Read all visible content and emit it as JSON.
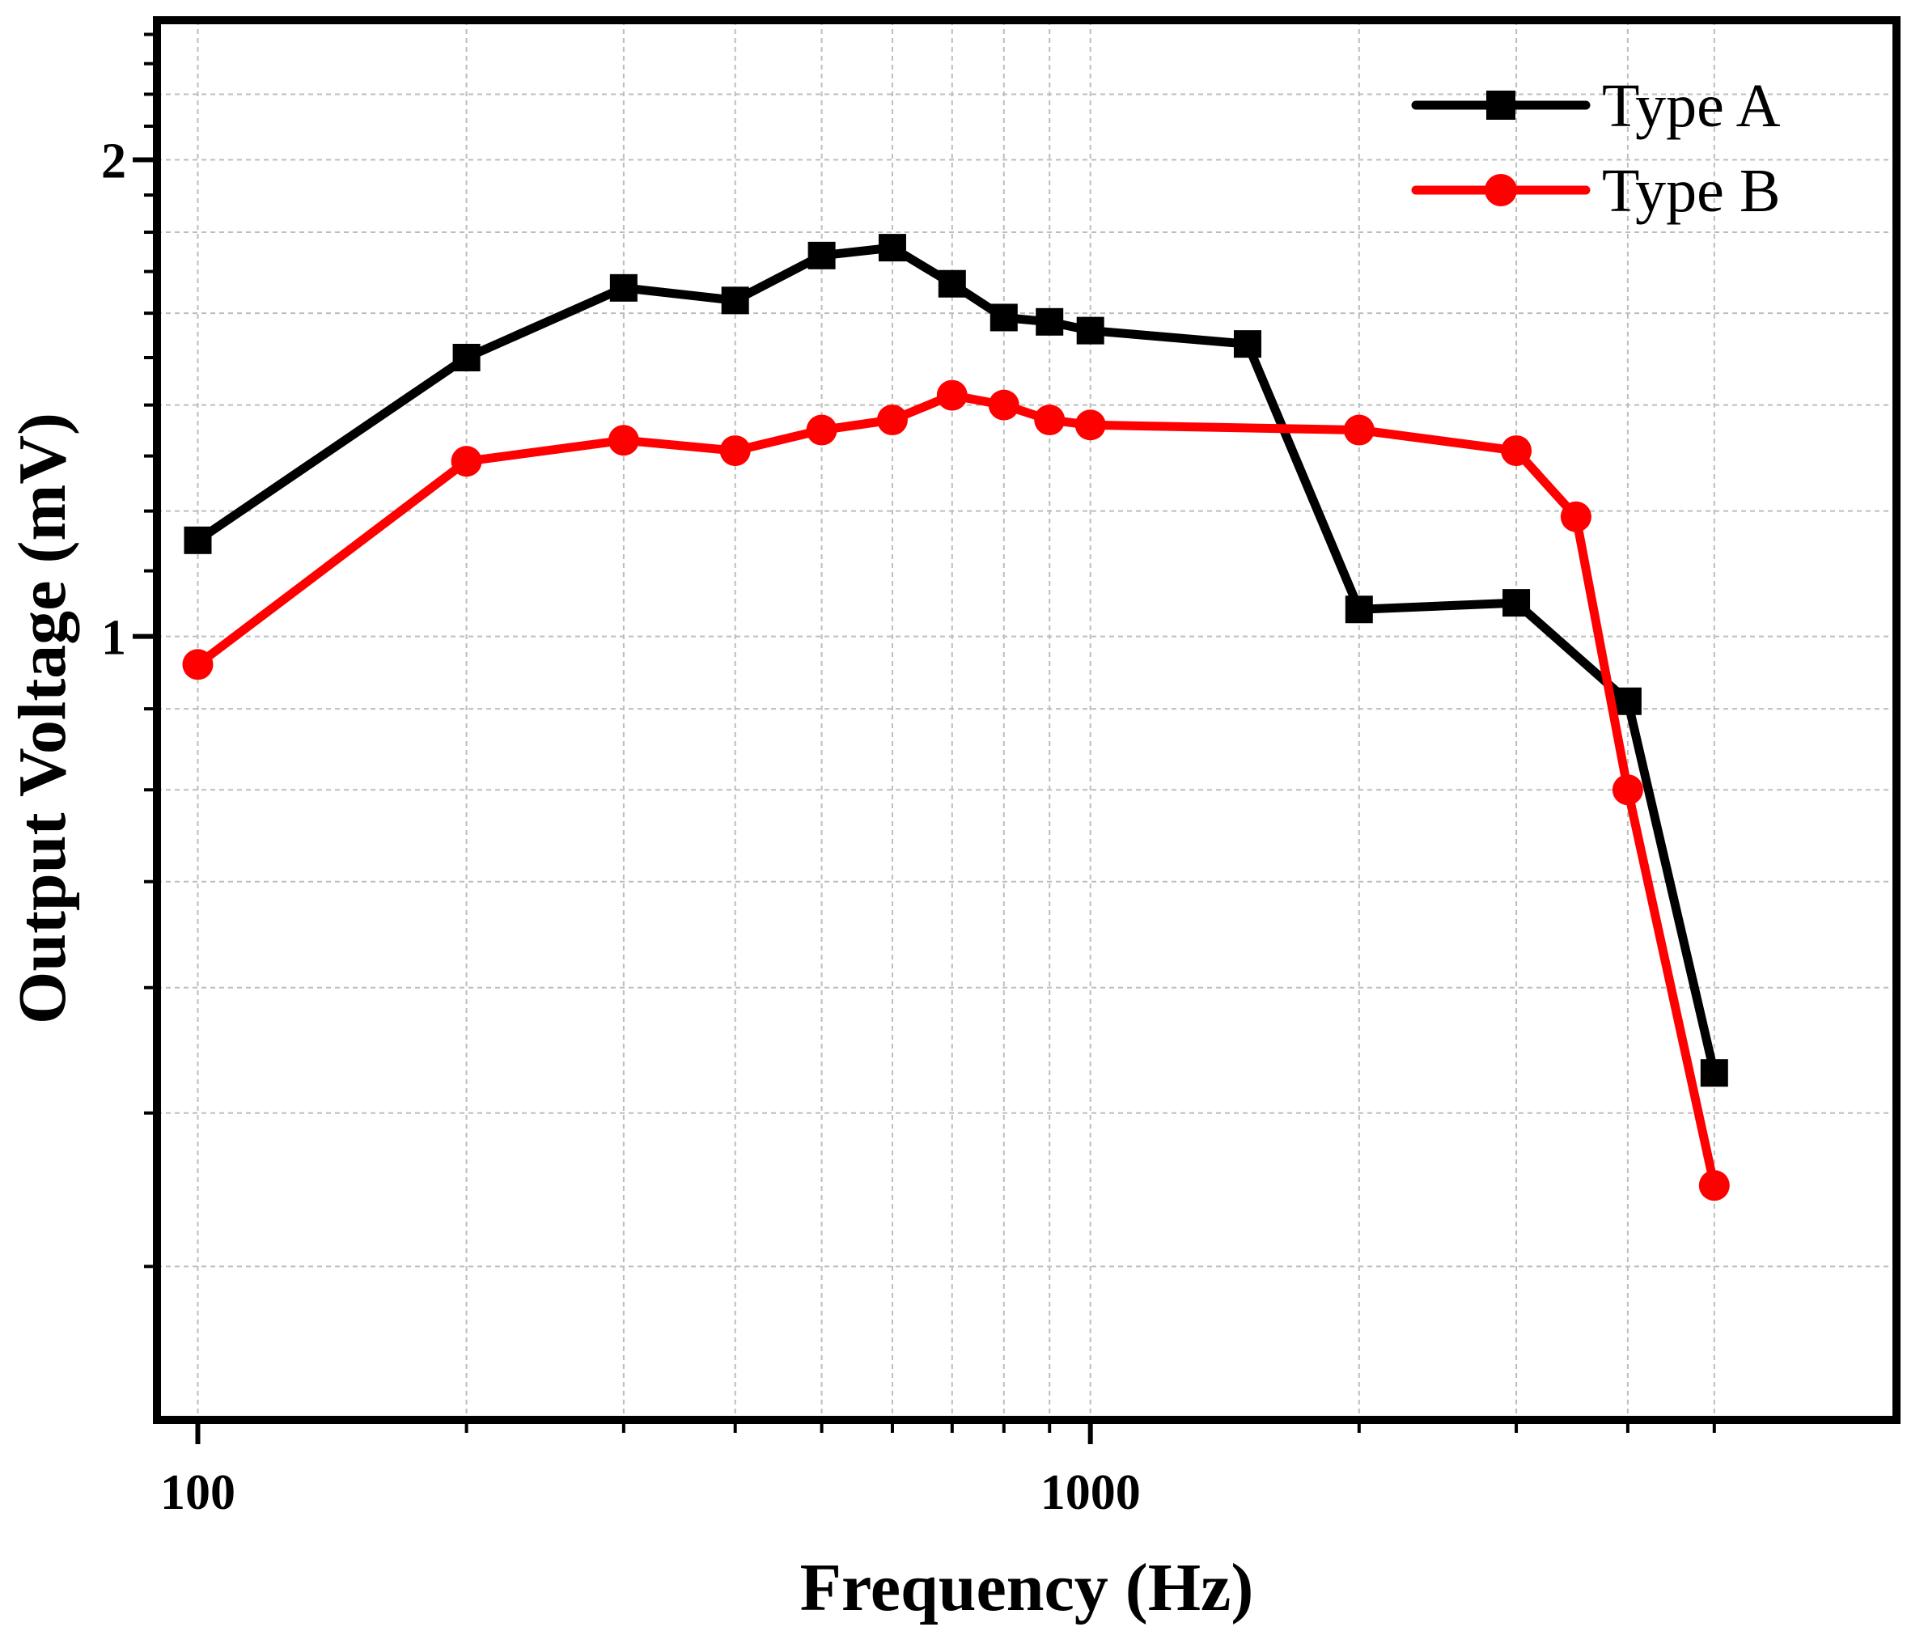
{
  "chart_data": {
    "type": "line",
    "title": "",
    "xlabel": "Frequency (Hz)",
    "ylabel": "Output Voltage (mV)",
    "x_scale": "log",
    "y_scale": "log",
    "xlim": [
      90,
      8000
    ],
    "ylim": [
      0.32,
      2.45
    ],
    "x_major_ticks": [
      {
        "value": 100,
        "label": "100"
      },
      {
        "value": 1000,
        "label": "1000"
      }
    ],
    "y_major_ticks": [
      {
        "value": 1,
        "label": "1"
      },
      {
        "value": 2,
        "label": "2"
      }
    ],
    "x_minor_ticks": [
      200,
      300,
      400,
      500,
      600,
      700,
      800,
      900,
      2000,
      3000,
      4000,
      5000
    ],
    "y_minor_ticks": [
      0.4,
      0.5,
      0.6,
      0.7,
      0.8,
      0.9,
      1.1,
      1.2,
      1.3,
      1.4,
      1.5,
      1.6,
      1.7,
      1.8,
      1.9,
      2.1,
      2.2,
      2.3,
      2.4
    ],
    "y_grid_lines": [
      0.4,
      0.5,
      0.6,
      0.7,
      0.8,
      0.9,
      1.0,
      1.2,
      1.4,
      1.6,
      1.8,
      2.0,
      2.2
    ],
    "grid": true,
    "legend_position": "top-right",
    "series": [
      {
        "name": "Type A",
        "color": "#000000",
        "marker": "square",
        "x": [
          100,
          200,
          300,
          400,
          500,
          600,
          700,
          800,
          900,
          1000,
          1500,
          2000,
          3000,
          4000,
          5000
        ],
        "y": [
          1.15,
          1.5,
          1.66,
          1.63,
          1.74,
          1.76,
          1.67,
          1.59,
          1.58,
          1.56,
          1.53,
          1.04,
          1.05,
          0.91,
          0.53
        ]
      },
      {
        "name": "Type B",
        "color": "#ff0000",
        "marker": "circle",
        "x": [
          100,
          200,
          300,
          400,
          500,
          600,
          700,
          800,
          900,
          1000,
          2000,
          3000,
          3500,
          4000,
          5000
        ],
        "y": [
          0.96,
          1.29,
          1.33,
          1.31,
          1.35,
          1.37,
          1.42,
          1.4,
          1.37,
          1.36,
          1.35,
          1.31,
          1.19,
          0.8,
          0.45
        ]
      }
    ]
  }
}
